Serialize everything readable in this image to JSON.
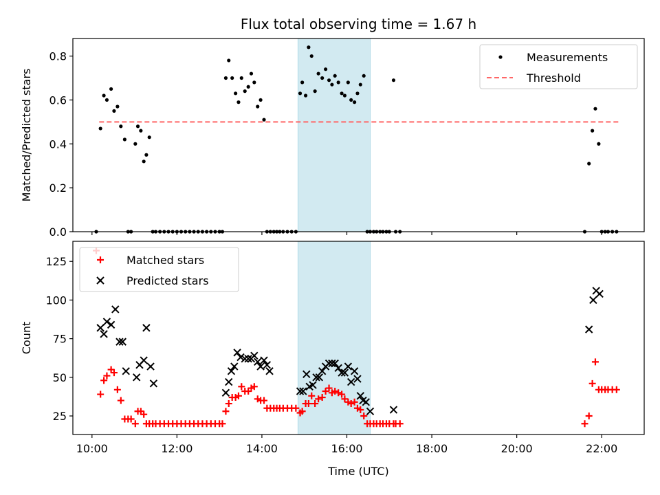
{
  "chart_data": {
    "title": "Flux total observing time = 1.67 h",
    "xlabel": "Time (UTC)",
    "x_ticks": [
      "10:00",
      "12:00",
      "14:00",
      "16:00",
      "18:00",
      "20:00",
      "22:00"
    ],
    "xlim_hours": [
      9.55,
      23.0
    ],
    "highlight_span_hours": [
      14.85,
      16.55
    ],
    "highlight_color": "#add8e6",
    "panels": [
      {
        "type": "scatter",
        "ylabel": "Matched/Predicted stars",
        "ylim": [
          0,
          0.88
        ],
        "y_ticks": [
          0.0,
          0.2,
          0.4,
          0.6,
          0.8
        ],
        "y_tick_labels": [
          "0.0",
          "0.2",
          "0.4",
          "0.6",
          "0.8"
        ],
        "legend_position": "top-right",
        "threshold": {
          "name": "Threshold",
          "value": 0.5,
          "x_range": [
            10.17,
            22.4
          ],
          "color": "#ff6666",
          "style": "dashed"
        },
        "series": [
          {
            "name": "Measurements",
            "color": "#000000",
            "marker": "dot",
            "x": [
              10.1,
              10.2,
              10.28,
              10.35,
              10.45,
              10.52,
              10.6,
              10.68,
              10.77,
              10.85,
              10.92,
              11.02,
              11.08,
              11.15,
              11.22,
              11.28,
              11.35,
              11.43,
              11.5,
              11.6,
              11.7,
              11.8,
              11.9,
              12.0,
              12.1,
              12.2,
              12.3,
              12.4,
              12.5,
              12.6,
              12.7,
              12.8,
              12.9,
              13.0,
              13.07,
              13.15,
              13.22,
              13.3,
              13.38,
              13.45,
              13.52,
              13.6,
              13.68,
              13.75,
              13.82,
              13.9,
              13.97,
              14.05,
              14.12,
              14.2,
              14.28,
              14.35,
              14.42,
              14.5,
              14.6,
              14.7,
              14.8,
              14.9,
              14.95,
              15.03,
              15.1,
              15.17,
              15.25,
              15.33,
              15.42,
              15.5,
              15.58,
              15.65,
              15.72,
              15.8,
              15.88,
              15.95,
              16.03,
              16.1,
              16.18,
              16.25,
              16.32,
              16.4,
              16.48,
              16.55,
              16.63,
              16.7,
              16.78,
              16.85,
              16.93,
              17.0,
              17.1,
              17.15,
              17.25,
              21.6,
              21.7,
              21.78,
              21.85,
              21.93,
              22.0,
              22.08,
              22.15,
              22.25,
              22.35
            ],
            "y": [
              0.0,
              0.47,
              0.62,
              0.6,
              0.65,
              0.55,
              0.57,
              0.48,
              0.42,
              0.0,
              0.0,
              0.4,
              0.48,
              0.46,
              0.32,
              0.35,
              0.43,
              0.0,
              0.0,
              0.0,
              0.0,
              0.0,
              0.0,
              0.0,
              0.0,
              0.0,
              0.0,
              0.0,
              0.0,
              0.0,
              0.0,
              0.0,
              0.0,
              0.0,
              0.0,
              0.7,
              0.78,
              0.7,
              0.63,
              0.59,
              0.7,
              0.64,
              0.66,
              0.72,
              0.68,
              0.57,
              0.6,
              0.51,
              0.0,
              0.0,
              0.0,
              0.0,
              0.0,
              0.0,
              0.0,
              0.0,
              0.0,
              0.63,
              0.68,
              0.62,
              0.84,
              0.8,
              0.64,
              0.72,
              0.7,
              0.74,
              0.69,
              0.67,
              0.71,
              0.68,
              0.63,
              0.62,
              0.68,
              0.6,
              0.59,
              0.63,
              0.67,
              0.71,
              0.0,
              0.0,
              0.0,
              0.0,
              0.0,
              0.0,
              0.0,
              0.0,
              0.69,
              0.0,
              0.0,
              0.0,
              0.31,
              0.46,
              0.56,
              0.4,
              0.0,
              0.0,
              0.0,
              0.0,
              0.0
            ]
          }
        ]
      },
      {
        "type": "scatter",
        "ylabel": "Count",
        "ylim": [
          13,
          138
        ],
        "y_ticks": [
          25,
          50,
          75,
          100,
          125
        ],
        "y_tick_labels": [
          "25",
          "50",
          "75",
          "100",
          "125"
        ],
        "legend_position": "top-left",
        "series": [
          {
            "name": "Matched stars",
            "color": "#ff0000",
            "marker": "plus",
            "x": [
              10.1,
              10.2,
              10.28,
              10.35,
              10.45,
              10.52,
              10.6,
              10.68,
              10.77,
              10.85,
              10.92,
              11.02,
              11.08,
              11.15,
              11.22,
              11.28,
              11.35,
              11.43,
              11.5,
              11.6,
              11.7,
              11.8,
              11.9,
              12.0,
              12.1,
              12.2,
              12.3,
              12.4,
              12.5,
              12.6,
              12.7,
              12.8,
              12.9,
              13.0,
              13.07,
              13.15,
              13.22,
              13.3,
              13.38,
              13.45,
              13.52,
              13.6,
              13.68,
              13.75,
              13.82,
              13.9,
              13.97,
              14.05,
              14.12,
              14.2,
              14.28,
              14.35,
              14.42,
              14.5,
              14.6,
              14.7,
              14.8,
              14.9,
              14.95,
              15.03,
              15.1,
              15.17,
              15.25,
              15.33,
              15.42,
              15.5,
              15.58,
              15.65,
              15.72,
              15.8,
              15.88,
              15.95,
              16.03,
              16.1,
              16.18,
              16.25,
              16.32,
              16.4,
              16.48,
              16.55,
              16.63,
              16.7,
              16.78,
              16.85,
              16.93,
              17.0,
              17.1,
              17.15,
              17.25,
              21.6,
              21.7,
              21.78,
              21.85,
              21.93,
              22.0,
              22.08,
              22.15,
              22.25,
              22.35
            ],
            "y": [
              132,
              39,
              48,
              51,
              55,
              53,
              42,
              35,
              23,
              23,
              23,
              20,
              28,
              28,
              26,
              20,
              20,
              20,
              20,
              20,
              20,
              20,
              20,
              20,
              20,
              20,
              20,
              20,
              20,
              20,
              20,
              20,
              20,
              20,
              20,
              28,
              33,
              37,
              37,
              38,
              44,
              41,
              41,
              43,
              44,
              36,
              35,
              35,
              30,
              30,
              30,
              30,
              30,
              30,
              30,
              30,
              30,
              27,
              28,
              33,
              33,
              38,
              33,
              36,
              37,
              41,
              43,
              40,
              41,
              40,
              39,
              36,
              34,
              33,
              34,
              30,
              29,
              25,
              20,
              20,
              20,
              20,
              20,
              20,
              20,
              20,
              20,
              20,
              20,
              20,
              25,
              46,
              60,
              42,
              42,
              42,
              42,
              42,
              42
            ]
          },
          {
            "name": "Predicted stars",
            "color": "#000000",
            "marker": "x",
            "x": [
              10.2,
              10.28,
              10.35,
              10.45,
              10.55,
              10.65,
              10.72,
              10.8,
              11.05,
              11.12,
              11.22,
              11.28,
              11.38,
              11.45,
              13.15,
              13.22,
              13.28,
              13.35,
              13.42,
              13.5,
              13.6,
              13.68,
              13.75,
              13.82,
              13.9,
              13.97,
              14.05,
              14.12,
              14.18,
              14.9,
              14.97,
              15.05,
              15.12,
              15.2,
              15.28,
              15.35,
              15.42,
              15.5,
              15.58,
              15.65,
              15.72,
              15.8,
              15.88,
              15.95,
              16.03,
              16.1,
              16.18,
              16.25,
              16.32,
              16.38,
              16.45,
              16.55,
              17.1,
              21.7,
              21.8,
              21.87,
              21.95
            ],
            "y": [
              82,
              78,
              86,
              84,
              94,
              73,
              73,
              54,
              50,
              58,
              61,
              82,
              57,
              46,
              40,
              47,
              54,
              57,
              66,
              63,
              62,
              62,
              62,
              64,
              60,
              57,
              61,
              58,
              54,
              41,
              41,
              52,
              44,
              45,
              50,
              50,
              54,
              57,
              59,
              59,
              59,
              56,
              53,
              53,
              57,
              47,
              54,
              49,
              38,
              35,
              34,
              28,
              29,
              81,
              100,
              106,
              104
            ]
          }
        ]
      }
    ]
  }
}
